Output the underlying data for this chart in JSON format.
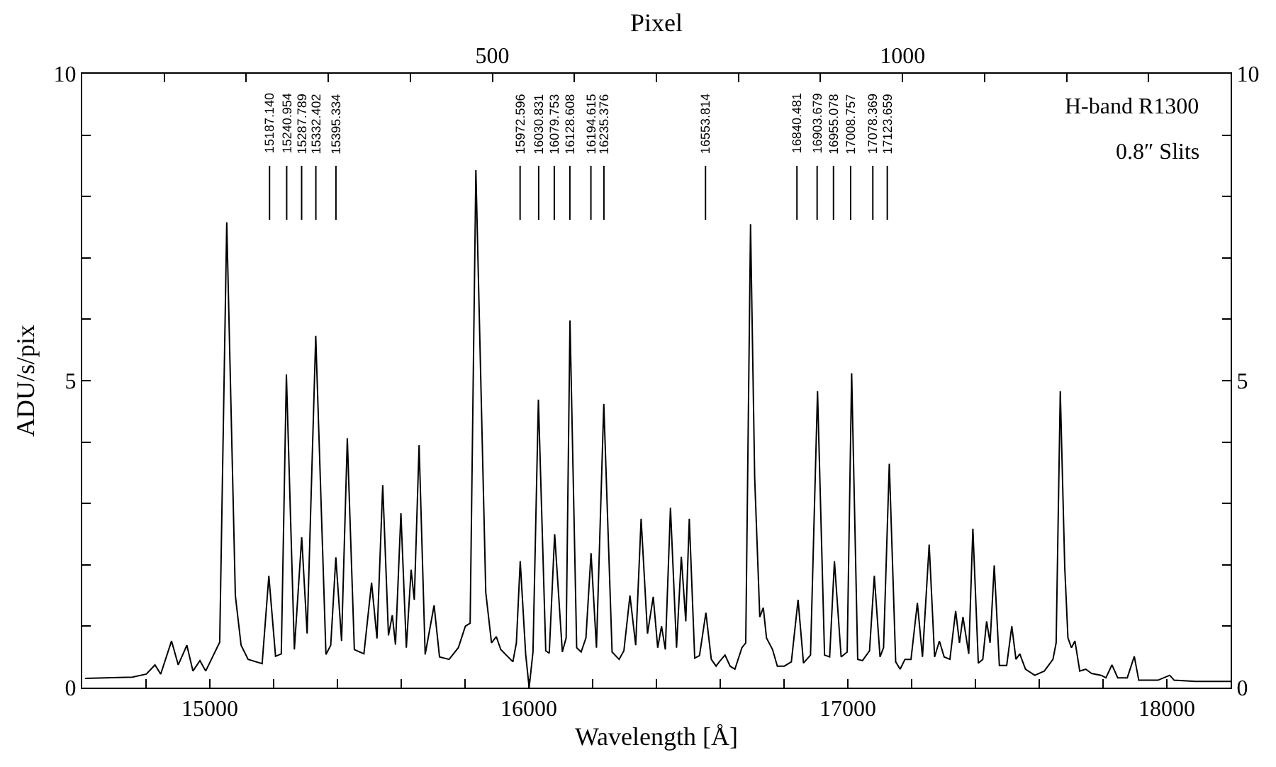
{
  "chart_data": {
    "type": "line",
    "xlabel": "Wavelength [Å]",
    "ylabel": "ADU/s/pix",
    "x2label": "Pixel",
    "xlim": [
      14600,
      18200
    ],
    "xticks": [
      {
        "value": 14600,
        "label": null
      },
      {
        "value": 14800,
        "label": null
      },
      15000,
      {
        "value": 15200,
        "label": null
      },
      {
        "value": 15400,
        "label": null
      },
      {
        "value": 15600,
        "label": null
      },
      {
        "value": 15800,
        "label": null
      },
      16000,
      {
        "value": 16200,
        "label": null
      },
      {
        "value": 16400,
        "label": null
      },
      {
        "value": 16600,
        "label": null
      },
      {
        "value": 16800,
        "label": null
      },
      17000,
      {
        "value": 17200,
        "label": null
      },
      {
        "value": 17400,
        "label": null
      },
      {
        "value": 17600,
        "label": null
      },
      {
        "value": 17800,
        "label": null
      },
      18000
    ],
    "x2lim": [
      0,
      1400
    ],
    "x2ticks": [
      {
        "value": 100,
        "label": null
      },
      {
        "value": 200,
        "label": null
      },
      {
        "value": 300,
        "label": null
      },
      {
        "value": 400,
        "label": null
      },
      500,
      {
        "value": 600,
        "label": null
      },
      {
        "value": 700,
        "label": null
      },
      {
        "value": 800,
        "label": null
      },
      {
        "value": 900,
        "label": null
      },
      1000,
      {
        "value": 1100,
        "label": null
      },
      {
        "value": 1200,
        "label": null
      },
      {
        "value": 1300,
        "label": null
      }
    ],
    "ylim": [
      0,
      10
    ],
    "yticks": [
      0,
      {
        "value": 1,
        "label": null
      },
      {
        "value": 2,
        "label": null
      },
      {
        "value": 3,
        "label": null
      },
      {
        "value": 4,
        "label": null
      },
      5,
      {
        "value": 6,
        "label": null
      },
      {
        "value": 7,
        "label": null
      },
      {
        "value": 8,
        "label": null
      },
      {
        "value": 9,
        "label": null
      },
      10
    ],
    "y2lim": [
      0,
      10
    ],
    "y2ticks": [
      0,
      {
        "value": 1,
        "label": null
      },
      {
        "value": 2,
        "label": null
      },
      {
        "value": 3,
        "label": null
      },
      {
        "value": 4,
        "label": null
      },
      5,
      {
        "value": 6,
        "label": null
      },
      {
        "value": 7,
        "label": null
      },
      {
        "value": 8,
        "label": null
      },
      {
        "value": 9,
        "label": null
      },
      10
    ],
    "marker": "none",
    "line_style": "solid",
    "series": [
      {
        "color": "#000000",
        "x": [
          14609,
          14757,
          14801,
          14828,
          14846,
          14880,
          14901,
          14928,
          14947,
          14969,
          14987,
          15031,
          15053,
          15080,
          15098,
          15120,
          15164,
          15185,
          15206,
          15224,
          15240,
          15265,
          15288,
          15305,
          15332,
          15364,
          15379,
          15395,
          15413,
          15431,
          15453,
          15483,
          15507,
          15524,
          15542,
          15560,
          15572,
          15582,
          15599,
          15616,
          15631,
          15641,
          15656,
          15675,
          15703,
          15720,
          15750,
          15779,
          15801,
          15816,
          15834,
          15865,
          15883,
          15898,
          15912,
          15950,
          15961,
          15973,
          15990,
          16001,
          16013,
          16030,
          16053,
          16064,
          16081,
          16105,
          16117,
          16129,
          16150,
          16164,
          16179,
          16195,
          16212,
          16235,
          16261,
          16283,
          16298,
          16317,
          16335,
          16352,
          16372,
          16390,
          16404,
          16416,
          16428,
          16444,
          16463,
          16478,
          16492,
          16503,
          16520,
          16535,
          16555,
          16572,
          16587,
          16597,
          16615,
          16631,
          16646,
          16668,
          16680,
          16695,
          16708,
          16724,
          16735,
          16745,
          16764,
          16779,
          16801,
          16823,
          16844,
          16861,
          16883,
          16905,
          16927,
          16943,
          16958,
          16979,
          16998,
          17012,
          17031,
          17046,
          17068,
          17083,
          17101,
          17112,
          17130,
          17150,
          17164,
          17179,
          17198,
          17218,
          17234,
          17255,
          17272,
          17287,
          17302,
          17320,
          17338,
          17350,
          17361,
          17379,
          17392,
          17409,
          17423,
          17435,
          17446,
          17459,
          17475,
          17498,
          17514,
          17527,
          17539,
          17557,
          17586,
          17616,
          17643,
          17653,
          17666,
          17680,
          17690,
          17701,
          17712,
          17727,
          17746,
          17764,
          17794,
          17809,
          17828,
          17846,
          17876,
          17898,
          17912,
          17972,
          18009,
          18023,
          18090,
          18200
        ],
        "values": [
          0.15,
          0.17,
          0.22,
          0.37,
          0.22,
          0.76,
          0.37,
          0.69,
          0.27,
          0.44,
          0.27,
          0.74,
          7.58,
          1.5,
          0.69,
          0.46,
          0.39,
          1.82,
          0.51,
          0.55,
          5.1,
          0.62,
          2.45,
          0.88,
          5.73,
          0.54,
          0.69,
          2.12,
          0.76,
          4.06,
          0.62,
          0.55,
          1.71,
          0.8,
          3.3,
          0.85,
          1.18,
          0.7,
          2.84,
          0.65,
          1.92,
          1.43,
          3.95,
          0.54,
          1.34,
          0.5,
          0.46,
          0.65,
          1.0,
          1.05,
          8.43,
          1.55,
          0.73,
          0.83,
          0.62,
          0.42,
          0.73,
          2.06,
          0.55,
          0.0,
          0.58,
          4.69,
          0.6,
          0.56,
          2.5,
          0.58,
          0.81,
          5.98,
          0.65,
          0.58,
          0.81,
          2.19,
          0.65,
          4.62,
          0.58,
          0.46,
          0.6,
          1.5,
          0.69,
          2.75,
          0.88,
          1.48,
          0.65,
          1.0,
          0.62,
          2.93,
          0.65,
          2.13,
          1.08,
          2.75,
          0.48,
          0.52,
          1.22,
          0.46,
          0.35,
          0.42,
          0.53,
          0.35,
          0.3,
          0.65,
          0.73,
          7.55,
          3.42,
          1.15,
          1.3,
          0.81,
          0.62,
          0.35,
          0.35,
          0.42,
          1.43,
          0.4,
          0.53,
          4.83,
          0.53,
          0.5,
          2.06,
          0.5,
          0.58,
          5.12,
          0.46,
          0.44,
          0.6,
          1.82,
          0.5,
          0.65,
          3.65,
          0.42,
          0.3,
          0.46,
          0.46,
          1.38,
          0.5,
          2.33,
          0.5,
          0.76,
          0.5,
          0.46,
          1.25,
          0.73,
          1.15,
          0.55,
          2.59,
          0.4,
          0.46,
          1.08,
          0.73,
          1.99,
          0.36,
          0.36,
          1.0,
          0.46,
          0.55,
          0.3,
          0.2,
          0.27,
          0.46,
          0.73,
          4.83,
          1.96,
          0.81,
          0.65,
          0.76,
          0.27,
          0.3,
          0.23,
          0.2,
          0.16,
          0.37,
          0.16,
          0.16,
          0.51,
          0.12,
          0.12,
          0.2,
          0.12,
          0.1,
          0.1
        ]
      }
    ],
    "ref_lines": [
      {
        "axis": "x",
        "value": 15187.14,
        "label": "15187.140"
      },
      {
        "axis": "x",
        "value": 15240.954,
        "label": "15240.954"
      },
      {
        "axis": "x",
        "value": 15287.789,
        "label": "15287.789"
      },
      {
        "axis": "x",
        "value": 15332.402,
        "label": "15332.402"
      },
      {
        "axis": "x",
        "value": 15395.334,
        "label": "15395.334"
      },
      {
        "axis": "x",
        "value": 15972.596,
        "label": "15972.596"
      },
      {
        "axis": "x",
        "value": 16030.831,
        "label": "16030.831"
      },
      {
        "axis": "x",
        "value": 16079.753,
        "label": "16079.753"
      },
      {
        "axis": "x",
        "value": 16128.608,
        "label": "16128.608"
      },
      {
        "axis": "x",
        "value": 16194.615,
        "label": "16194.615"
      },
      {
        "axis": "x",
        "value": 16235.376,
        "label": "16235.376"
      },
      {
        "axis": "x",
        "value": 16553.814,
        "label": "16553.814"
      },
      {
        "axis": "x",
        "value": 16840.481,
        "label": "16840.481"
      },
      {
        "axis": "x",
        "value": 16903.679,
        "label": "16903.679"
      },
      {
        "axis": "x",
        "value": 16955.078,
        "label": "16955.078"
      },
      {
        "axis": "x",
        "value": 17008.757,
        "label": "17008.757"
      },
      {
        "axis": "x",
        "value": 17078.369,
        "label": "17078.369"
      },
      {
        "axis": "x",
        "value": 17123.659,
        "label": "17123.659"
      }
    ],
    "annotations": [
      "H-band R1300",
      "0.8″ Slits"
    ]
  }
}
